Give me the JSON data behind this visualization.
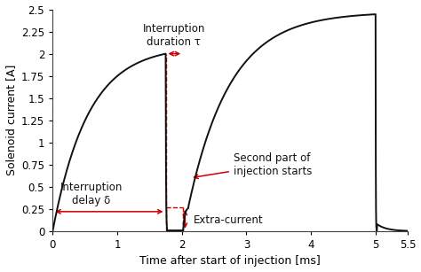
{
  "title": "",
  "xlabel": "Time after start of injection [ms]",
  "ylabel": "Solenoid current [A]",
  "xlim": [
    0,
    5.5
  ],
  "ylim": [
    0,
    2.5
  ],
  "xticks": [
    0,
    1,
    2,
    3,
    4,
    5,
    5.5
  ],
  "yticks": [
    0,
    0.25,
    0.5,
    0.75,
    1.0,
    1.25,
    1.5,
    1.75,
    2.0,
    2.25,
    2.5
  ],
  "line_color": "#111111",
  "arrow_color": "#cc0000",
  "annotation_color": "#111111",
  "bg_color": "#ffffff",
  "interruption_start": 1.75,
  "interruption_end": 2.02,
  "extra_current_level": 0.27,
  "peak_plateau": 2.47,
  "pulse_end": 5.0,
  "residual": 0.08,
  "figsize": [
    4.74,
    3.07
  ],
  "dpi": 100
}
